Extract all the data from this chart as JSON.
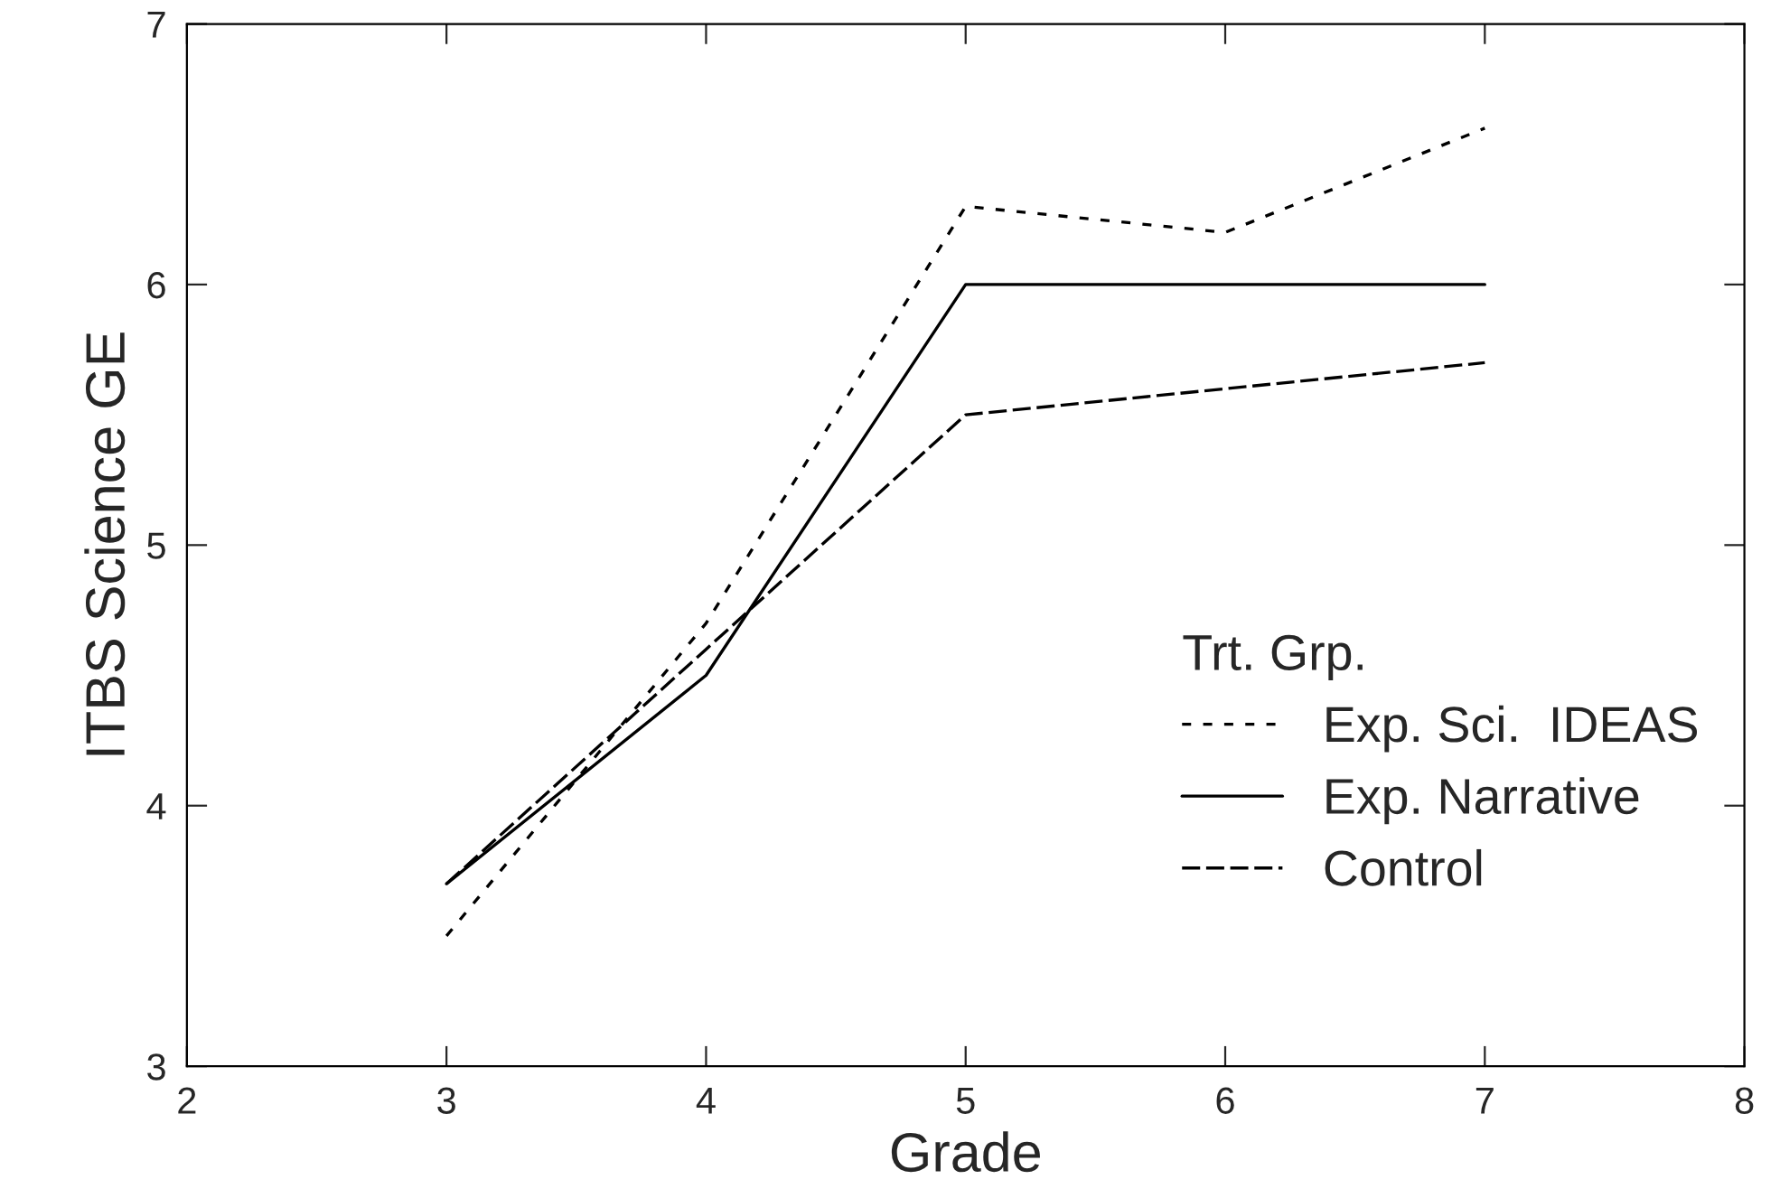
{
  "chart_data": {
    "type": "line",
    "xlabel": "Grade",
    "ylabel": "ITBS Science GE",
    "legend_title": "Trt. Grp.",
    "legend": "bottom right",
    "grid": false,
    "marker": "none",
    "x": [
      3,
      4,
      5,
      6,
      7
    ],
    "xlim": [
      2,
      8
    ],
    "xticks": [
      2,
      3,
      4,
      5,
      6,
      7,
      8
    ],
    "ylim": [
      3,
      7
    ],
    "yticks": [
      3,
      4,
      5,
      6,
      7
    ],
    "series": [
      {
        "name": "Exp. Sci.  IDEAS",
        "color": "#000000",
        "line_style": "dotted",
        "values": [
          3.5,
          4.7,
          6.3,
          6.2,
          6.6
        ]
      },
      {
        "name": "Exp. Narrative",
        "color": "#000000",
        "line_style": "solid",
        "values": [
          3.7,
          4.5,
          6.0,
          6.0,
          6.0
        ]
      },
      {
        "name": "Control",
        "color": "#000000",
        "line_style": "dashed",
        "values": [
          3.7,
          4.6,
          5.5,
          5.6,
          5.7
        ]
      }
    ]
  }
}
